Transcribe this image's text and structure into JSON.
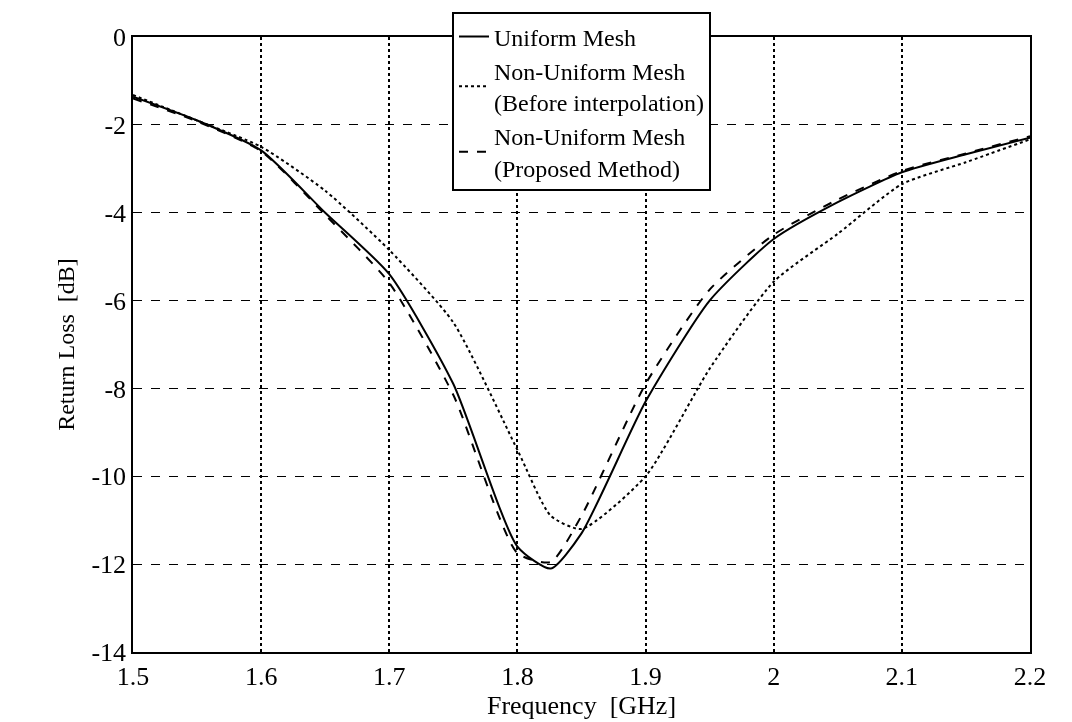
{
  "chart_data": {
    "type": "line",
    "xlabel": "Frequency  [GHz]",
    "ylabel": "Return Loss  [dB]",
    "xlim": [
      1.5,
      2.2
    ],
    "xticks": [
      1.5,
      1.6,
      1.7,
      1.8,
      1.9,
      2,
      2.1,
      2.2
    ],
    "ylim": [
      -14,
      0
    ],
    "yticks": [
      -14,
      -12,
      -10,
      -8,
      -6,
      -4,
      -2,
      0
    ],
    "grid": true,
    "legend": "top",
    "marker": "none",
    "x": [
      1.5,
      1.55,
      1.6,
      1.65,
      1.7,
      1.75,
      1.8,
      1.826,
      1.85,
      1.9,
      1.95,
      2,
      2.05,
      2.1,
      2.15,
      2.2
    ],
    "series": [
      {
        "name": "Uniform Mesh",
        "color": "#000000",
        "line_style": "solid",
        "values": [
          -1.36,
          -1.9,
          -2.58,
          -4.0,
          -5.4,
          -7.9,
          -11.6,
          -12.1,
          -11.3,
          -8.3,
          -6.0,
          -4.6,
          -3.76,
          -3.08,
          -2.67,
          -2.29
        ]
      },
      {
        "name": "Non-Uniform Mesh\n(Before interpolation)",
        "color": "#000000",
        "line_style": "dotted",
        "values": [
          -1.32,
          -1.9,
          -2.5,
          -3.5,
          -4.85,
          -6.5,
          -9.4,
          -10.9,
          -11.2,
          -10.0,
          -7.55,
          -5.57,
          -4.48,
          -3.35,
          -2.85,
          -2.33
        ]
      },
      {
        "name": "Non-Uniform Mesh\n(Proposed Method)",
        "color": "#000000",
        "line_style": "dashed",
        "values": [
          -1.4,
          -1.92,
          -2.6,
          -4.05,
          -5.6,
          -8.15,
          -11.75,
          -11.95,
          -10.9,
          -7.9,
          -5.75,
          -4.5,
          -3.7,
          -3.05,
          -2.65,
          -2.26
        ]
      }
    ]
  }
}
